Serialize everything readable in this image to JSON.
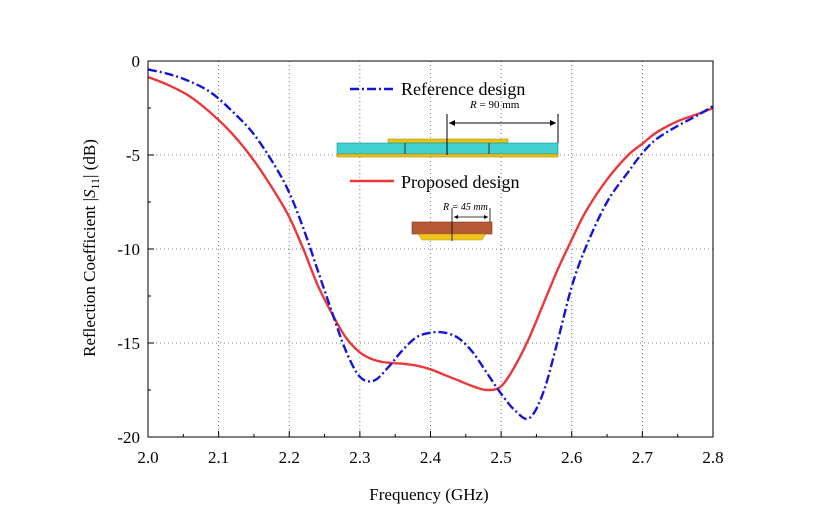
{
  "chart_data": {
    "type": "line",
    "title": "",
    "xlabel": "Frequency (GHz)",
    "ylabel_prefix": "Reflection Coefficient |",
    "ylabel_symbol": "S",
    "ylabel_subscript": "11",
    "ylabel_suffix": "| (dB)",
    "xlim": [
      2.0,
      2.8
    ],
    "ylim": [
      -20,
      0
    ],
    "xticks": [
      "2.0",
      "2.1",
      "2.2",
      "2.3",
      "2.4",
      "2.5",
      "2.6",
      "2.7",
      "2.8"
    ],
    "yticks": [
      "0",
      "-5",
      "-10",
      "-15",
      "-20"
    ],
    "grid": "dotted",
    "legend_position": "top-center",
    "series": [
      {
        "name": "Reference design",
        "color": "#1515d6",
        "style": "dash-dot",
        "x": [
          2.0,
          2.03,
          2.06,
          2.09,
          2.12,
          2.15,
          2.18,
          2.2,
          2.22,
          2.24,
          2.26,
          2.28,
          2.3,
          2.32,
          2.34,
          2.36,
          2.38,
          2.4,
          2.42,
          2.44,
          2.46,
          2.48,
          2.5,
          2.52,
          2.54,
          2.56,
          2.58,
          2.6,
          2.62,
          2.65,
          2.68,
          2.7,
          2.72,
          2.75,
          2.78,
          2.8
        ],
        "y": [
          -0.45,
          -0.7,
          -1.1,
          -1.7,
          -2.7,
          -3.9,
          -5.6,
          -7.0,
          -8.9,
          -11.1,
          -13.3,
          -15.4,
          -16.8,
          -17.0,
          -16.3,
          -15.4,
          -14.7,
          -14.45,
          -14.45,
          -14.75,
          -15.5,
          -16.6,
          -17.7,
          -18.6,
          -19.0,
          -17.6,
          -14.9,
          -12.0,
          -9.9,
          -7.5,
          -5.9,
          -4.9,
          -4.15,
          -3.45,
          -2.85,
          -2.4
        ]
      },
      {
        "name": "Proposed design",
        "color": "#e8393c",
        "style": "solid",
        "x": [
          2.0,
          2.03,
          2.06,
          2.09,
          2.12,
          2.15,
          2.18,
          2.2,
          2.22,
          2.24,
          2.26,
          2.28,
          2.3,
          2.32,
          2.34,
          2.36,
          2.38,
          2.4,
          2.42,
          2.44,
          2.46,
          2.48,
          2.5,
          2.52,
          2.54,
          2.56,
          2.58,
          2.6,
          2.62,
          2.65,
          2.68,
          2.7,
          2.72,
          2.75,
          2.78,
          2.8
        ],
        "y": [
          -0.85,
          -1.3,
          -1.9,
          -2.8,
          -3.9,
          -5.3,
          -7.0,
          -8.3,
          -10.0,
          -11.9,
          -13.4,
          -14.7,
          -15.5,
          -15.9,
          -16.05,
          -16.1,
          -16.2,
          -16.4,
          -16.7,
          -17.0,
          -17.3,
          -17.5,
          -17.3,
          -16.2,
          -14.7,
          -12.9,
          -11.1,
          -9.5,
          -8.0,
          -6.3,
          -5.0,
          -4.4,
          -3.8,
          -3.2,
          -2.8,
          -2.5
        ]
      }
    ],
    "annotations": {
      "reference_dimension": {
        "italic": "R",
        "text": " = 90 mm"
      },
      "proposed_dimension": {
        "italic": "R",
        "text": " = 45 mm"
      }
    }
  }
}
